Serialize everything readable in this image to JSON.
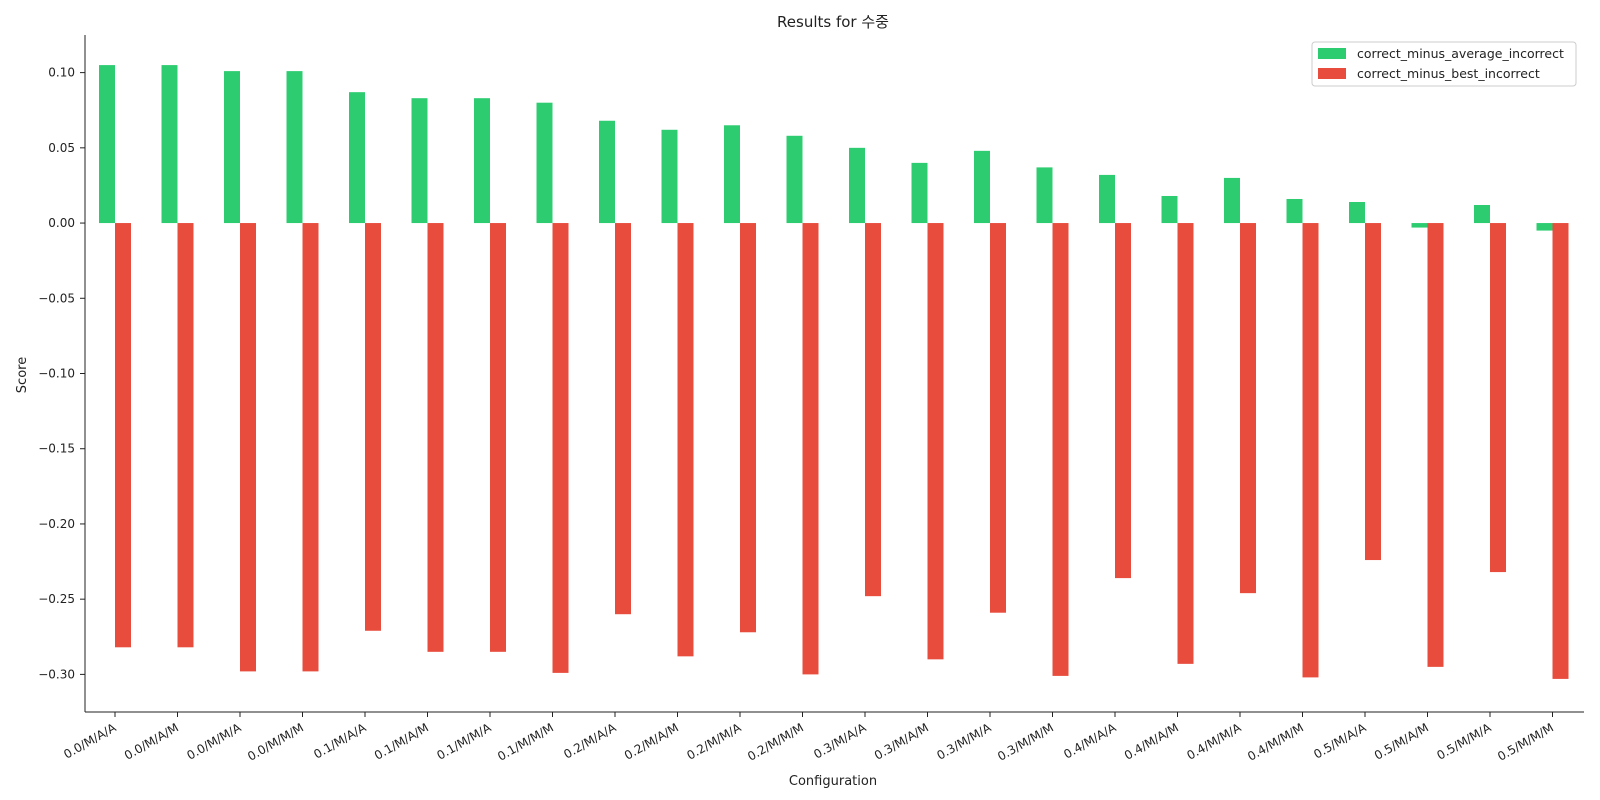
{
  "chart_data": {
    "type": "bar",
    "title": "Results for 수중",
    "xlabel": "Configuration",
    "ylabel": "Score",
    "ylim": [
      -0.325,
      0.125
    ],
    "yticks": [
      0.1,
      0.05,
      0.0,
      -0.05,
      -0.1,
      -0.15,
      -0.2,
      -0.25,
      -0.3
    ],
    "ytick_labels": [
      "0.10",
      "0.05",
      "0.00",
      "−0.05",
      "−0.10",
      "−0.15",
      "−0.20",
      "−0.25",
      "−0.30"
    ],
    "grid": false,
    "legend_position": "top-right",
    "categories": [
      "0.0/M/A/A",
      "0.0/M/A/M",
      "0.0/M/M/A",
      "0.0/M/M/M",
      "0.1/M/A/A",
      "0.1/M/A/M",
      "0.1/M/M/A",
      "0.1/M/M/M",
      "0.2/M/A/A",
      "0.2/M/A/M",
      "0.2/M/M/A",
      "0.2/M/M/M",
      "0.3/M/A/A",
      "0.3/M/A/M",
      "0.3/M/M/A",
      "0.3/M/M/M",
      "0.4/M/A/A",
      "0.4/M/A/M",
      "0.4/M/M/A",
      "0.4/M/M/M",
      "0.5/M/A/A",
      "0.5/M/A/M",
      "0.5/M/M/A",
      "0.5/M/M/M"
    ],
    "series": [
      {
        "name": "correct_minus_average_incorrect",
        "color": "#2ecc71",
        "values": [
          0.105,
          0.105,
          0.101,
          0.101,
          0.087,
          0.083,
          0.083,
          0.08,
          0.068,
          0.062,
          0.065,
          0.058,
          0.05,
          0.04,
          0.048,
          0.037,
          0.032,
          0.018,
          0.03,
          0.016,
          0.014,
          -0.003,
          0.012,
          -0.005
        ]
      },
      {
        "name": "correct_minus_best_incorrect",
        "color": "#e74c3c",
        "values": [
          -0.282,
          -0.282,
          -0.298,
          -0.298,
          -0.271,
          -0.285,
          -0.285,
          -0.299,
          -0.26,
          -0.288,
          -0.272,
          -0.3,
          -0.248,
          -0.29,
          -0.259,
          -0.301,
          -0.236,
          -0.293,
          -0.246,
          -0.302,
          -0.224,
          -0.295,
          -0.232,
          -0.303
        ]
      }
    ]
  }
}
